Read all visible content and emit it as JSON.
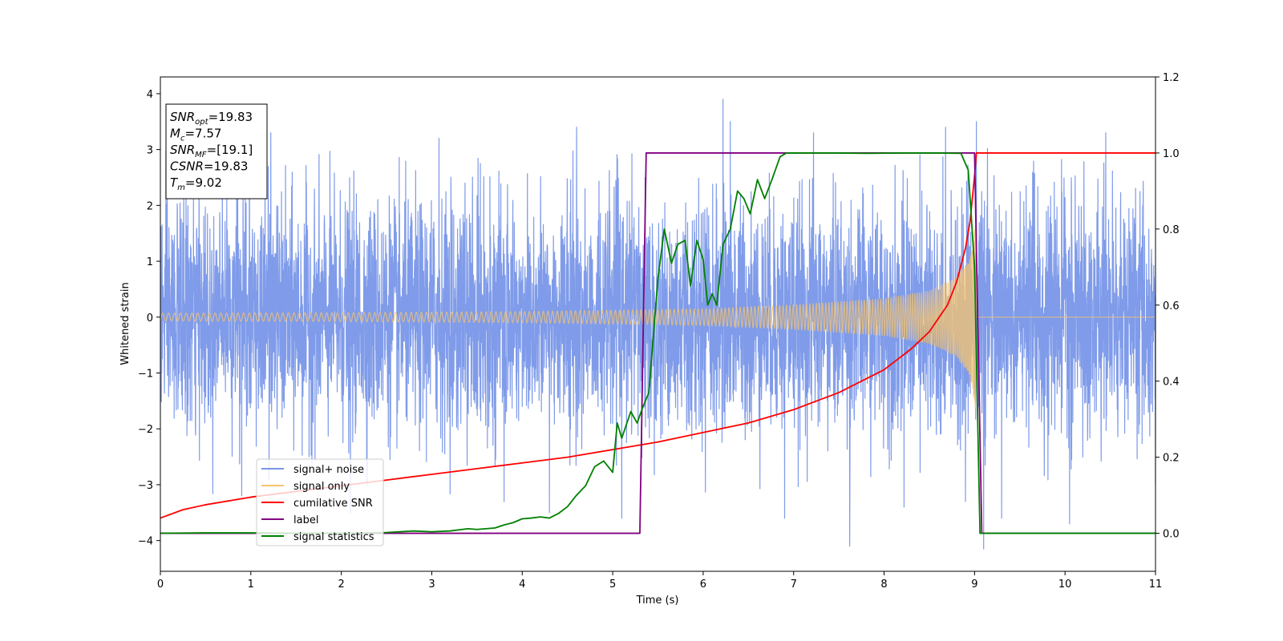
{
  "chart_data": {
    "type": "line",
    "xlabel": "Time (s)",
    "ylabel": "Whitened strain",
    "xlim": [
      0,
      11
    ],
    "ylim_left": [
      -4.55,
      4.3
    ],
    "ylim_right": [
      -0.1,
      1.2
    ],
    "x_ticks": [
      0,
      1,
      2,
      3,
      4,
      5,
      6,
      7,
      8,
      9,
      10,
      11
    ],
    "y_ticks_left": [
      -4,
      -3,
      -2,
      -1,
      0,
      1,
      2,
      3,
      4
    ],
    "y_ticks_right": [
      0.0,
      0.2,
      0.4,
      0.6,
      0.8,
      1.0,
      1.2
    ],
    "y_tick_labels_left": [
      "−4",
      "−3",
      "−2",
      "−1",
      "0",
      "1",
      "2",
      "3",
      "4"
    ],
    "y_tick_labels_right": [
      "0.0",
      "0.2",
      "0.4",
      "0.6",
      "0.8",
      "1.0",
      "1.2"
    ],
    "grid": false,
    "legend_position": "lower-left",
    "info_box": {
      "lines": [
        {
          "main": "SNR",
          "sub": "opt",
          "rest": "=19.83"
        },
        {
          "main": "M",
          "sub": "c",
          "rest": "=7.57"
        },
        {
          "main": "SNR",
          "sub": "MF",
          "rest": "=[19.1]"
        },
        {
          "main": "CSNR",
          "sub": "",
          "rest": "=19.83"
        },
        {
          "main": "T",
          "sub": "m",
          "rest": "=9.02"
        }
      ]
    },
    "series": [
      {
        "name": "signal+ noise",
        "axis": "left",
        "color": "#7896E8",
        "kind": "noise",
        "noise_std": 1.0,
        "spike_points": [
          [
            1.22,
            3.3
          ],
          [
            3.08,
            3.2
          ],
          [
            4.6,
            3.4
          ],
          [
            6.22,
            3.9
          ],
          [
            6.3,
            3.5
          ],
          [
            7.22,
            3.3
          ],
          [
            8.68,
            3.4
          ],
          [
            9.02,
            3.5
          ],
          [
            10.45,
            3.3
          ],
          [
            3.8,
            -3.3
          ],
          [
            5.1,
            -3.6
          ],
          [
            7.62,
            -4.1
          ],
          [
            8.22,
            -3.4
          ],
          [
            9.1,
            -4.15
          ],
          [
            9.3,
            -3.6
          ],
          [
            10.05,
            -3.7
          ],
          [
            0.9,
            -3.2
          ],
          [
            2.1,
            -3.5
          ],
          [
            4.3,
            -3.5
          ],
          [
            6.9,
            -3.6
          ],
          [
            8.9,
            -3.3
          ],
          [
            11.0,
            -3.0
          ]
        ]
      },
      {
        "name": "signal only",
        "axis": "left",
        "color": "#F7C46C",
        "kind": "chirp",
        "amplitude_points": [
          [
            0,
            0.07
          ],
          [
            2,
            0.08
          ],
          [
            4,
            0.1
          ],
          [
            6,
            0.15
          ],
          [
            7,
            0.22
          ],
          [
            8,
            0.33
          ],
          [
            8.5,
            0.47
          ],
          [
            8.8,
            0.7
          ],
          [
            8.95,
            1.05
          ],
          [
            9.02,
            1.8
          ]
        ],
        "merger_time": 9.02
      },
      {
        "name": "cumilative SNR",
        "axis": "right",
        "color": "#FF0000",
        "points": [
          [
            0,
            0.04
          ],
          [
            0.25,
            0.062
          ],
          [
            0.5,
            0.075
          ],
          [
            1,
            0.095
          ],
          [
            1.5,
            0.11
          ],
          [
            2,
            0.125
          ],
          [
            2.5,
            0.14
          ],
          [
            3,
            0.155
          ],
          [
            3.5,
            0.17
          ],
          [
            4,
            0.185
          ],
          [
            4.5,
            0.2
          ],
          [
            5,
            0.22
          ],
          [
            5.5,
            0.24
          ],
          [
            6,
            0.265
          ],
          [
            6.5,
            0.29
          ],
          [
            7,
            0.325
          ],
          [
            7.5,
            0.37
          ],
          [
            8,
            0.43
          ],
          [
            8.3,
            0.485
          ],
          [
            8.5,
            0.53
          ],
          [
            8.7,
            0.6
          ],
          [
            8.8,
            0.66
          ],
          [
            8.9,
            0.75
          ],
          [
            8.95,
            0.82
          ],
          [
            9.0,
            0.94
          ],
          [
            9.02,
            1.0
          ],
          [
            11,
            1.0
          ]
        ]
      },
      {
        "name": "label",
        "axis": "right",
        "color": "#800080",
        "points": [
          [
            0,
            0.0
          ],
          [
            5.3,
            0.0
          ],
          [
            5.37,
            1.0
          ],
          [
            9.0,
            1.0
          ],
          [
            9.08,
            0.0
          ],
          [
            11,
            0.0
          ]
        ]
      },
      {
        "name": "signal statistics",
        "axis": "right",
        "color": "#008000",
        "points": [
          [
            0,
            0.0
          ],
          [
            0.5,
            0.001
          ],
          [
            1,
            0.001
          ],
          [
            1.5,
            0.0
          ],
          [
            2,
            0.0
          ],
          [
            2.5,
            0.002
          ],
          [
            2.8,
            0.006
          ],
          [
            3.0,
            0.004
          ],
          [
            3.2,
            0.006
          ],
          [
            3.4,
            0.012
          ],
          [
            3.5,
            0.01
          ],
          [
            3.6,
            0.012
          ],
          [
            3.7,
            0.014
          ],
          [
            3.8,
            0.022
          ],
          [
            3.9,
            0.028
          ],
          [
            4.0,
            0.038
          ],
          [
            4.1,
            0.04
          ],
          [
            4.2,
            0.043
          ],
          [
            4.3,
            0.04
          ],
          [
            4.4,
            0.052
          ],
          [
            4.5,
            0.07
          ],
          [
            4.6,
            0.1
          ],
          [
            4.7,
            0.125
          ],
          [
            4.8,
            0.175
          ],
          [
            4.9,
            0.19
          ],
          [
            5.0,
            0.16
          ],
          [
            5.05,
            0.29
          ],
          [
            5.1,
            0.25
          ],
          [
            5.2,
            0.32
          ],
          [
            5.27,
            0.29
          ],
          [
            5.33,
            0.33
          ],
          [
            5.4,
            0.37
          ],
          [
            5.5,
            0.67
          ],
          [
            5.57,
            0.8
          ],
          [
            5.65,
            0.71
          ],
          [
            5.72,
            0.76
          ],
          [
            5.8,
            0.77
          ],
          [
            5.86,
            0.65
          ],
          [
            5.93,
            0.77
          ],
          [
            6.0,
            0.72
          ],
          [
            6.05,
            0.6
          ],
          [
            6.1,
            0.63
          ],
          [
            6.15,
            0.6
          ],
          [
            6.22,
            0.76
          ],
          [
            6.3,
            0.8
          ],
          [
            6.38,
            0.9
          ],
          [
            6.45,
            0.88
          ],
          [
            6.52,
            0.84
          ],
          [
            6.6,
            0.93
          ],
          [
            6.68,
            0.88
          ],
          [
            6.76,
            0.93
          ],
          [
            6.85,
            0.99
          ],
          [
            6.92,
            1.0
          ],
          [
            7.2,
            1.0
          ],
          [
            7.5,
            1.0
          ],
          [
            7.8,
            0.999
          ],
          [
            8.2,
            1.0
          ],
          [
            8.6,
            1.0
          ],
          [
            8.85,
            0.999
          ],
          [
            8.93,
            0.955
          ],
          [
            9.0,
            0.7
          ],
          [
            9.06,
            0.0
          ],
          [
            11,
            0.0
          ]
        ]
      }
    ]
  }
}
